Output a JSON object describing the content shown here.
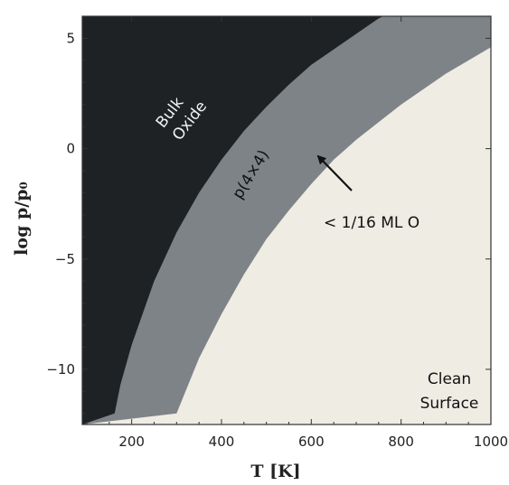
{
  "chart_data": {
    "type": "area",
    "title": "",
    "xlabel": "T [K]",
    "ylabel": "log p/p₀",
    "xlim": [
      90,
      1000
    ],
    "ylim": [
      -12.5,
      6
    ],
    "xticks": [
      200,
      400,
      600,
      800,
      1000
    ],
    "yticks": [
      5,
      0,
      -5,
      -10
    ],
    "xtick_labels": [
      "200",
      "400",
      "600",
      "800",
      "1000"
    ],
    "ytick_labels": [
      "5",
      "0",
      "−5",
      "−10"
    ],
    "grid": false,
    "regions": [
      {
        "name": "Bulk Oxide",
        "color": "#1f2224"
      },
      {
        "name": "p(4×4)",
        "color": "#7e8387"
      },
      {
        "name": "Clean Surface",
        "color": "#efece4"
      }
    ],
    "boundaries": [
      {
        "between": [
          "Bulk Oxide",
          "p(4×4)"
        ],
        "x": [
          162,
          175,
          200,
          250,
          300,
          350,
          400,
          450,
          500,
          550,
          600,
          650,
          700,
          750,
          760
        ],
        "y": [
          -12,
          -10.7,
          -8.9,
          -6.0,
          -3.8,
          -2.0,
          -0.5,
          0.8,
          1.9,
          2.9,
          3.8,
          4.5,
          5.2,
          5.9,
          6
        ]
      },
      {
        "between": [
          "p(4×4)",
          "Clean Surface"
        ],
        "x": [
          300,
          350,
          400,
          450,
          500,
          550,
          600,
          650,
          700,
          750,
          800,
          850,
          900,
          950,
          1000
        ],
        "y": [
          -12,
          -9.5,
          -7.5,
          -5.7,
          -4.1,
          -2.8,
          -1.6,
          -0.5,
          0.4,
          1.2,
          2.0,
          2.7,
          3.4,
          4.0,
          4.6
        ]
      }
    ],
    "annotations": [
      {
        "text": "Bulk",
        "region": "Bulk Oxide"
      },
      {
        "text": "Oxide",
        "region": "Bulk Oxide"
      },
      {
        "text": "p(4×4)",
        "region": "p(4×4)"
      },
      {
        "text": "< 1/16 ML O",
        "points_to": "p(4×4) boundary"
      },
      {
        "text": "Clean",
        "region": "Clean Surface"
      },
      {
        "text": "Surface",
        "region": "Clean Surface"
      }
    ]
  }
}
